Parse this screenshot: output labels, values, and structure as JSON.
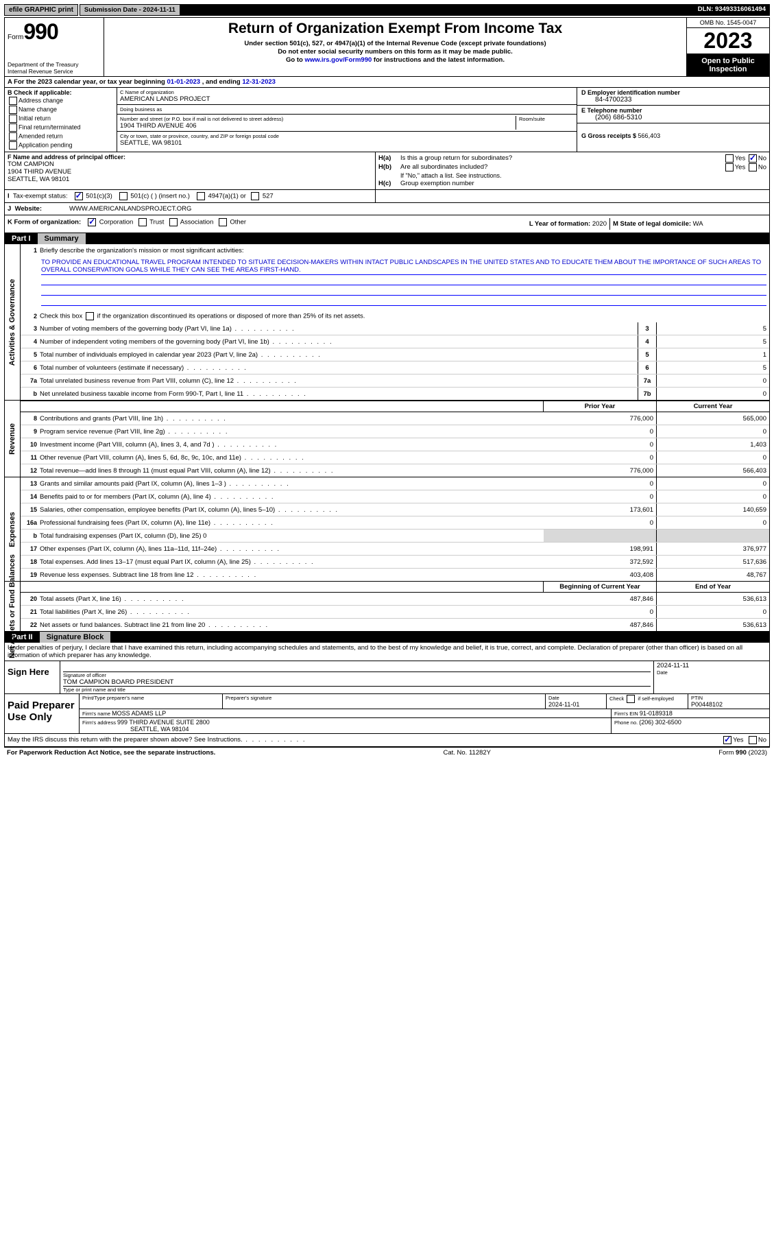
{
  "topbar": {
    "efile": "efile GRAPHIC print",
    "subdate_label": "Submission Date - ",
    "subdate": "2024-11-11",
    "dln_label": "DLN: ",
    "dln": "93493316061494"
  },
  "header": {
    "form_word": "Form",
    "form_num": "990",
    "dept": "Department of the Treasury\nInternal Revenue Service",
    "title": "Return of Organization Exempt From Income Tax",
    "sub1": "Under section 501(c), 527, or 4947(a)(1) of the Internal Revenue Code (except private foundations)",
    "sub2": "Do not enter social security numbers on this form as it may be made public.",
    "sub3_pre": "Go to ",
    "sub3_link": "www.irs.gov/Form990",
    "sub3_post": " for instructions and the latest information.",
    "omb": "OMB No. 1545-0047",
    "year": "2023",
    "openpub": "Open to Public Inspection"
  },
  "taxyear": {
    "pre": "A For the 2023 calendar year, or tax year beginning ",
    "begin": "01-01-2023",
    "mid": " , and ending ",
    "end": "12-31-2023"
  },
  "b": {
    "label": "B Check if applicable:",
    "opts": [
      "Address change",
      "Name change",
      "Initial return",
      "Final return/terminated",
      "Amended return",
      "Application pending"
    ]
  },
  "c": {
    "name_lbl": "C Name of organization",
    "name": "AMERICAN LANDS PROJECT",
    "dba_lbl": "Doing business as",
    "dba": "",
    "street_lbl": "Number and street (or P.O. box if mail is not delivered to street address)",
    "room_lbl": "Room/suite",
    "street": "1904 THIRD AVENUE 406",
    "city_lbl": "City or town, state or province, country, and ZIP or foreign postal code",
    "city": "SEATTLE, WA  98101"
  },
  "d": {
    "ein_lbl": "D Employer identification number",
    "ein": "84-4700233",
    "tel_lbl": "E Telephone number",
    "tel": "(206) 686-5310",
    "gross_lbl": "G Gross receipts $ ",
    "gross": "566,403"
  },
  "f": {
    "lbl": "F Name and address of principal officer:",
    "name": "TOM CAMPION",
    "addr1": "1904 THIRD AVENUE",
    "addr2": "SEATTLE, WA  98101"
  },
  "h": {
    "a_lbl": "H(a)",
    "a_txt": "Is this a group return for subordinates?",
    "a_yes": "Yes",
    "a_no": "No",
    "b_lbl": "H(b)",
    "b_txt": "Are all subordinates included?",
    "b_note": "If \"No,\" attach a list. See instructions.",
    "c_lbl": "H(c)",
    "c_txt": "Group exemption number "
  },
  "i": {
    "lbl": "I",
    "txt": "Tax-exempt status:",
    "o1": "501(c)(3)",
    "o2": "501(c) (  ) (insert no.)",
    "o3": "4947(a)(1) or",
    "o4": "527"
  },
  "j": {
    "lbl": "J",
    "txt": "Website: ",
    "val": "WWW.AMERICANLANDSPROJECT.ORG"
  },
  "k": {
    "lbl": "K Form of organization:",
    "o1": "Corporation",
    "o2": "Trust",
    "o3": "Association",
    "o4": "Other"
  },
  "l": {
    "txt": "L Year of formation: ",
    "val": "2020"
  },
  "m": {
    "txt": "M State of legal domicile: ",
    "val": "WA"
  },
  "part1": {
    "num": "Part I",
    "title": "Summary"
  },
  "summary": {
    "q1": "Briefly describe the organization's mission or most significant activities:",
    "mission": "TO PROVIDE AN EDUCATIONAL TRAVEL PROGRAM INTENDED TO SITUATE DECISION-MAKERS WITHIN INTACT PUBLIC LANDSCAPES IN THE UNITED STATES AND TO EDUCATE THEM ABOUT THE IMPORTANCE OF SUCH AREAS TO OVERALL CONSERVATION GOALS WHILE THEY CAN SEE THE AREAS FIRST-HAND.",
    "q2": "Check this box      if the organization discontinued its operations or disposed of more than 25% of its net assets.",
    "rows_gov": [
      {
        "n": "3",
        "t": "Number of voting members of the governing body (Part VI, line 1a)",
        "box": "3",
        "v": "5"
      },
      {
        "n": "4",
        "t": "Number of independent voting members of the governing body (Part VI, line 1b)",
        "box": "4",
        "v": "5"
      },
      {
        "n": "5",
        "t": "Total number of individuals employed in calendar year 2023 (Part V, line 2a)",
        "box": "5",
        "v": "1"
      },
      {
        "n": "6",
        "t": "Total number of volunteers (estimate if necessary)",
        "box": "6",
        "v": "5"
      },
      {
        "n": "7a",
        "t": "Total unrelated business revenue from Part VIII, column (C), line 12",
        "box": "7a",
        "v": "0"
      },
      {
        "n": "b",
        "t": "Net unrelated business taxable income from Form 990-T, Part I, line 11",
        "box": "7b",
        "v": "0"
      }
    ],
    "hdr_prior": "Prior Year",
    "hdr_curr": "Current Year",
    "rows_rev": [
      {
        "n": "8",
        "t": "Contributions and grants (Part VIII, line 1h)",
        "p": "776,000",
        "c": "565,000"
      },
      {
        "n": "9",
        "t": "Program service revenue (Part VIII, line 2g)",
        "p": "0",
        "c": "0"
      },
      {
        "n": "10",
        "t": "Investment income (Part VIII, column (A), lines 3, 4, and 7d )",
        "p": "0",
        "c": "1,403"
      },
      {
        "n": "11",
        "t": "Other revenue (Part VIII, column (A), lines 5, 6d, 8c, 9c, 10c, and 11e)",
        "p": "0",
        "c": "0"
      },
      {
        "n": "12",
        "t": "Total revenue—add lines 8 through 11 (must equal Part VIII, column (A), line 12)",
        "p": "776,000",
        "c": "566,403"
      }
    ],
    "rows_exp": [
      {
        "n": "13",
        "t": "Grants and similar amounts paid (Part IX, column (A), lines 1–3 )",
        "p": "0",
        "c": "0"
      },
      {
        "n": "14",
        "t": "Benefits paid to or for members (Part IX, column (A), line 4)",
        "p": "0",
        "c": "0"
      },
      {
        "n": "15",
        "t": "Salaries, other compensation, employee benefits (Part IX, column (A), lines 5–10)",
        "p": "173,601",
        "c": "140,659"
      },
      {
        "n": "16a",
        "t": "Professional fundraising fees (Part IX, column (A), line 11e)",
        "p": "0",
        "c": "0"
      },
      {
        "n": "b",
        "t": "Total fundraising expenses (Part IX, column (D), line 25) 0",
        "p": "",
        "c": "",
        "shade": true
      },
      {
        "n": "17",
        "t": "Other expenses (Part IX, column (A), lines 11a–11d, 11f–24e)",
        "p": "198,991",
        "c": "376,977"
      },
      {
        "n": "18",
        "t": "Total expenses. Add lines 13–17 (must equal Part IX, column (A), line 25)",
        "p": "372,592",
        "c": "517,636"
      },
      {
        "n": "19",
        "t": "Revenue less expenses. Subtract line 18 from line 12",
        "p": "403,408",
        "c": "48,767"
      }
    ],
    "hdr_boy": "Beginning of Current Year",
    "hdr_eoy": "End of Year",
    "rows_net": [
      {
        "n": "20",
        "t": "Total assets (Part X, line 16)",
        "p": "487,846",
        "c": "536,613"
      },
      {
        "n": "21",
        "t": "Total liabilities (Part X, line 26)",
        "p": "0",
        "c": "0"
      },
      {
        "n": "22",
        "t": "Net assets or fund balances. Subtract line 21 from line 20",
        "p": "487,846",
        "c": "536,613"
      }
    ]
  },
  "vlabels": {
    "gov": "Activities & Governance",
    "rev": "Revenue",
    "exp": "Expenses",
    "net": "Net Assets or Fund Balances"
  },
  "part2": {
    "num": "Part II",
    "title": "Signature Block"
  },
  "sig": {
    "para": "Under penalties of perjury, I declare that I have examined this return, including accompanying schedules and statements, and to the best of my knowledge and belief, it is true, correct, and complete. Declaration of preparer (other than officer) is based on all information of which preparer has any knowledge.",
    "sign_here": "Sign Here",
    "sig_of_officer": "Signature of officer",
    "name_title": "TOM CAMPION  BOARD PRESIDENT",
    "type_name": "Type or print name and title",
    "date_lbl": "Date",
    "date": "2024-11-11",
    "paid": "Paid Preparer Use Only",
    "prep_name_lbl": "Print/Type preparer's name",
    "prep_sig_lbl": "Preparer's signature",
    "prep_date_lbl": "Date",
    "prep_date": "2024-11-01",
    "check_self": "Check        if self-employed",
    "ptin_lbl": "PTIN",
    "ptin": "P00448102",
    "firm_name_lbl": "Firm's name   ",
    "firm_name": "MOSS ADAMS LLP",
    "firm_ein_lbl": "Firm's EIN  ",
    "firm_ein": "91-0189318",
    "firm_addr_lbl": "Firm's address  ",
    "firm_addr1": "999 THIRD AVENUE SUITE 2800",
    "firm_addr2": "SEATTLE, WA  98104",
    "phone_lbl": "Phone no. ",
    "phone": "(206) 302-6500",
    "discuss": "May the IRS discuss this return with the preparer shown above? See Instructions.",
    "yes": "Yes",
    "no": "No"
  },
  "footer": {
    "left": "For Paperwork Reduction Act Notice, see the separate instructions.",
    "mid": "Cat. No. 11282Y",
    "right": "Form 990 (2023)"
  }
}
